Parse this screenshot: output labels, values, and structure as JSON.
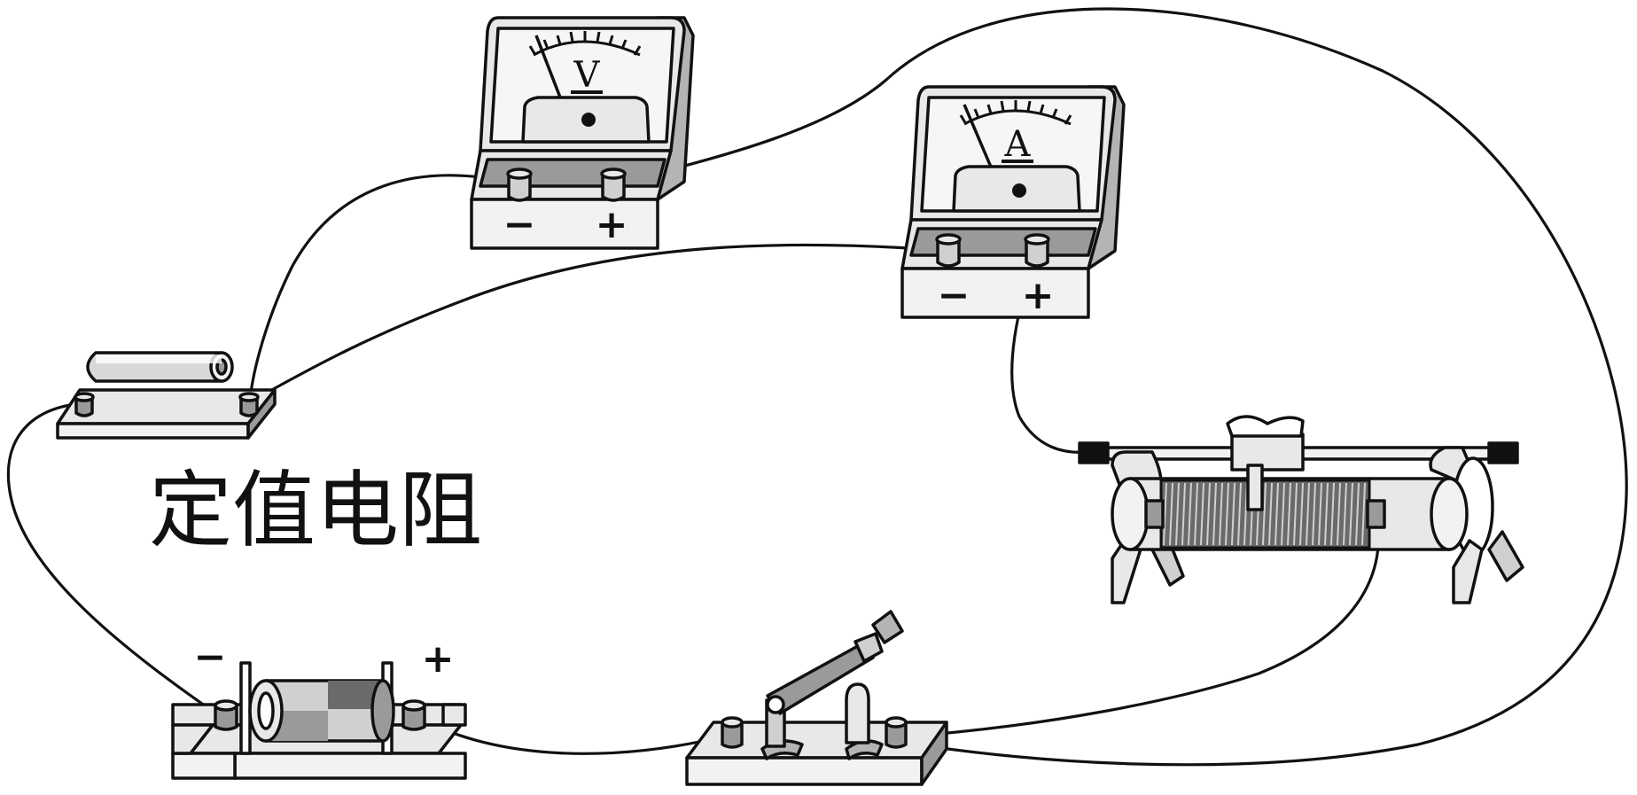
{
  "resistor_label": "定值电阻",
  "voltmeter": {
    "symbol": "V",
    "minus": "−",
    "plus": "+"
  },
  "ammeter": {
    "symbol": "A",
    "minus": "−",
    "plus": "+"
  },
  "battery": {
    "minus": "−",
    "plus": "+"
  },
  "colors": {
    "stroke": "#111111",
    "light_gray": "#e8e8e8",
    "mid_gray": "#b4b4b4",
    "dark_gray": "#6a6a6a",
    "background": "#ffffff"
  }
}
